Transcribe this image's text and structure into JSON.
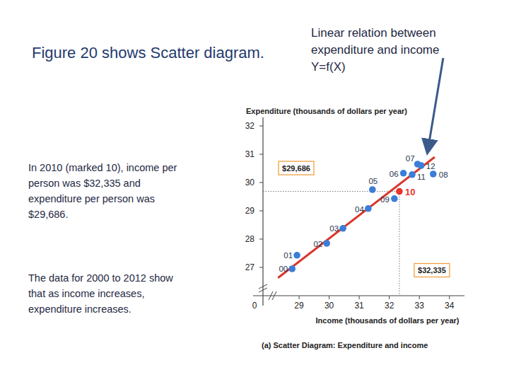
{
  "slide": {
    "title": "Figure 20 shows Scatter diagram.",
    "note_lines": [
      "Linear relation between",
      "expenditure and income",
      "Y=f(X)"
    ],
    "paragraph_1": [
      "In 2010 (marked 10), income per",
      "person was $32,335 and",
      "expenditure per person was",
      "$29,686."
    ],
    "paragraph_2": [
      "The data for 2000 to 2012 show",
      "that as income increases,",
      "expenditure increases."
    ]
  },
  "chart_data": {
    "type": "scatter",
    "caption": "(a) Scatter Diagram: Expenditure and income",
    "y_label": "Expenditure (thousands of dollars per year)",
    "x_label": "Income (thousands of dollars per year)",
    "origin_label": "0",
    "x": [
      28.77,
      28.93,
      29.92,
      30.46,
      31.3,
      31.44,
      32.47,
      32.94,
      33.46,
      32.17,
      32.335,
      32.76,
      33.06
    ],
    "values": [
      26.95,
      27.43,
      27.85,
      28.38,
      29.08,
      29.75,
      30.33,
      30.65,
      30.3,
      29.43,
      29.686,
      30.28,
      30.6
    ],
    "point_labels": [
      "00",
      "01",
      "02",
      "03",
      "04",
      "05",
      "06",
      "07",
      "08",
      "09",
      "10",
      "11",
      "12"
    ],
    "colors": [
      "#3b7dd8",
      "#3b7dd8",
      "#3b7dd8",
      "#3b7dd8",
      "#3b7dd8",
      "#3b7dd8",
      "#3b7dd8",
      "#3b7dd8",
      "#3b7dd8",
      "#3b7dd8",
      "#e8342b",
      "#3b7dd8",
      "#3b7dd8"
    ],
    "marker": "circle",
    "trend_line": {
      "x": [
        28.3,
        33.51
      ],
      "values": [
        26.63,
        30.9
      ],
      "color": "#d9362c",
      "line_style": "solid"
    },
    "annotations": [
      {
        "label": "$29,686",
        "value": 29.686,
        "axis": "y"
      },
      {
        "label": "$32,335",
        "value": 32.335,
        "axis": "x"
      }
    ],
    "xlim": [
      27.8,
      34.5
    ],
    "ylim": [
      26,
      32.3
    ],
    "xticks": [
      29,
      30,
      31,
      32,
      33,
      34
    ],
    "yticks": [
      27,
      28,
      29,
      30,
      31,
      32
    ],
    "grid": false
  }
}
